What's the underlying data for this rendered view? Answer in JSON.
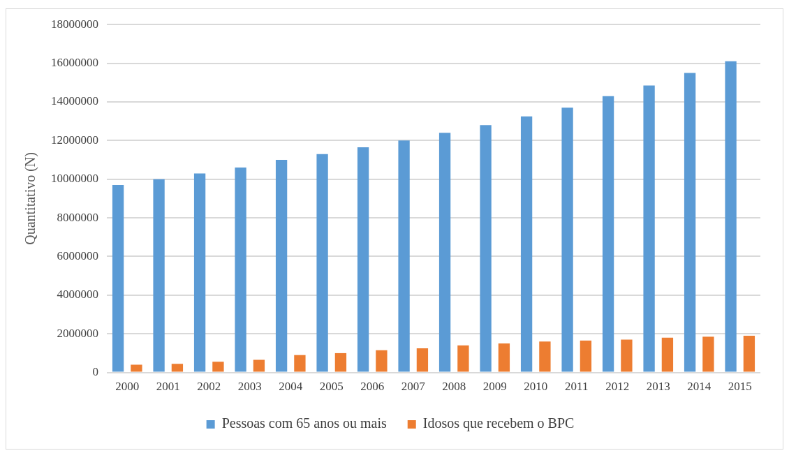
{
  "chart_data": {
    "type": "bar",
    "ylabel": "Quantitativo (N)",
    "categories": [
      "2000",
      "2001",
      "2002",
      "2003",
      "2004",
      "2005",
      "2006",
      "2007",
      "2008",
      "2009",
      "2010",
      "2011",
      "2012",
      "2013",
      "2014",
      "2015"
    ],
    "series": [
      {
        "name": "Pessoas com 65 anos ou mais",
        "color": "#5b9bd5",
        "values": [
          9700000,
          10000000,
          10300000,
          10600000,
          11000000,
          11300000,
          11650000,
          12000000,
          12400000,
          12800000,
          13250000,
          13700000,
          14300000,
          14850000,
          15500000,
          16100000
        ]
      },
      {
        "name": "Idosos que recebem o BPC",
        "color": "#ed7d31",
        "values": [
          400000,
          450000,
          550000,
          650000,
          900000,
          1000000,
          1150000,
          1250000,
          1400000,
          1500000,
          1600000,
          1650000,
          1700000,
          1800000,
          1850000,
          1900000
        ]
      }
    ],
    "ylim": [
      0,
      18000000
    ],
    "yticks": [
      0,
      2000000,
      4000000,
      6000000,
      8000000,
      10000000,
      12000000,
      14000000,
      16000000,
      18000000
    ],
    "grid": "y",
    "legend": "bottom"
  }
}
